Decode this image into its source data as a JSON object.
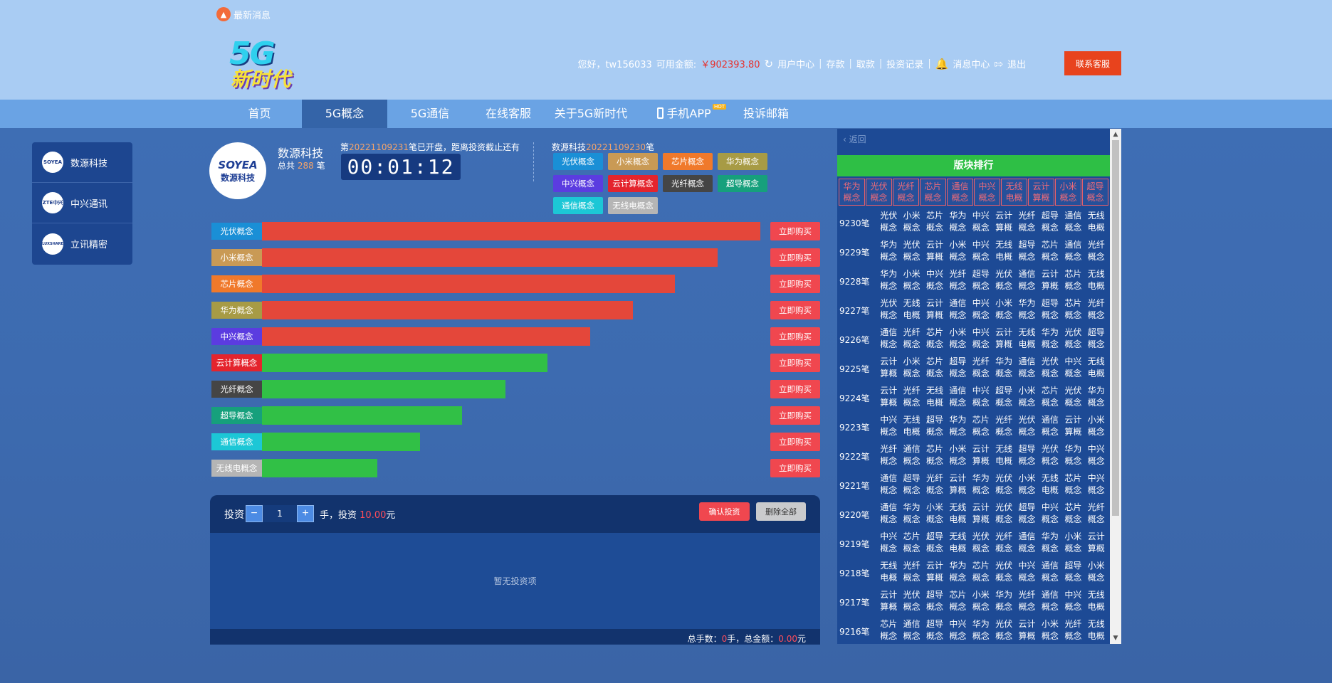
{
  "header": {
    "news_label": "最新消息",
    "logo_line1": "5G",
    "logo_line2": "新时代",
    "greeting": "您好，tw156033",
    "balance_label": "可用金额:",
    "balance_value": "￥902393.80",
    "links": [
      "用户中心",
      "存款",
      "取款",
      "投资记录",
      "消息中心",
      "退出"
    ],
    "contact_label": "联系客服"
  },
  "nav": {
    "items": [
      "首页",
      "5G概念",
      "5G通信",
      "在线客服",
      "关于5G新时代",
      "手机APP",
      "投诉邮箱"
    ],
    "hot_badge": "HOT",
    "active_index": 1
  },
  "sidebar": {
    "items": [
      {
        "label": "数源科技",
        "logo": "SOYEA"
      },
      {
        "label": "中兴通讯",
        "logo": "ZTE中兴"
      },
      {
        "label": "立讯精密",
        "logo": "LUXSHARE"
      }
    ]
  },
  "company": {
    "logo_line1": "SOYEA",
    "logo_line2": "数源科技",
    "name": "数源科技",
    "total_prefix": "总共",
    "total_count": "288",
    "total_suffix": "笔"
  },
  "period": {
    "prefix": "第",
    "number": "20221109231",
    "suffix": "笔已开盘，距离投资截止还有",
    "timer": "00:01:12"
  },
  "current": {
    "prefix": "数源科技",
    "number": "20221109230",
    "suffix": "笔"
  },
  "concepts": [
    {
      "name": "光伏概念",
      "color": "#1a8fd6"
    },
    {
      "name": "小米概念",
      "color": "#c99a55"
    },
    {
      "name": "芯片概念",
      "color": "#f0792b"
    },
    {
      "name": "华为概念",
      "color": "#a79b45"
    },
    {
      "name": "中兴概念",
      "color": "#5b3ce0"
    },
    {
      "name": "云计算概念",
      "color": "#e4242d"
    },
    {
      "name": "光纤概念",
      "color": "#454545"
    },
    {
      "name": "超导概念",
      "color": "#16a07c"
    },
    {
      "name": "通信概念",
      "color": "#1cc7d6"
    },
    {
      "name": "无线电概念",
      "color": "#b5b5b5"
    }
  ],
  "ranking_bars": {
    "buy_label": "立即购买",
    "items": [
      {
        "name": "光伏概念",
        "level": 1.0,
        "color": "#e4473a"
      },
      {
        "name": "小米概念",
        "level": 0.914,
        "color": "#e4473a"
      },
      {
        "name": "芯片概念",
        "level": 0.829,
        "color": "#e4473a"
      },
      {
        "name": "华为概念",
        "level": 0.744,
        "color": "#e4473a"
      },
      {
        "name": "中兴概念",
        "level": 0.658,
        "color": "#e4473a"
      },
      {
        "name": "云计算概念",
        "level": 0.573,
        "color": "#31c046"
      },
      {
        "name": "光纤概念",
        "level": 0.488,
        "color": "#31c046"
      },
      {
        "name": "超导概念",
        "level": 0.402,
        "color": "#31c046"
      },
      {
        "name": "通信概念",
        "level": 0.317,
        "color": "#31c046"
      },
      {
        "name": "无线电概念",
        "level": 0.232,
        "color": "#31c046"
      }
    ]
  },
  "invest": {
    "label": "投资",
    "minus": "−",
    "plus": "+",
    "quantity": "1",
    "unit_text": "手，投资",
    "amount": "10.00",
    "currency": "元",
    "confirm_label": "确认投资",
    "clear_label": "删除全部",
    "empty_text": "暂无投资项",
    "summary_hands_label": "总手数：",
    "summary_hands": "0",
    "summary_amount_label": "手，总金额：",
    "summary_amount": "0.00",
    "summary_currency": "元"
  },
  "right_panel": {
    "back_label": "返回",
    "title": "版块排行",
    "headers": [
      "华为\n概念",
      "光伏\n概念",
      "光纤\n概念",
      "芯片\n概念",
      "通信\n概念",
      "中兴\n概念",
      "无线\n电概",
      "云计\n算概",
      "小米\n概念",
      "超导\n概念"
    ],
    "rows": [
      {
        "period": "9230笔",
        "cells": [
          "光伏概念",
          "小米概念",
          "芯片概念",
          "华为概念",
          "中兴概念",
          "云计算概",
          "光纤概念",
          "超导概念",
          "通信概念",
          "无线电概"
        ]
      },
      {
        "period": "9229笔",
        "cells": [
          "华为概念",
          "光伏概念",
          "云计算概",
          "小米概念",
          "中兴概念",
          "无线电概",
          "超导概念",
          "芯片概念",
          "通信概念",
          "光纤概念"
        ]
      },
      {
        "period": "9228笔",
        "cells": [
          "华为概念",
          "小米概念",
          "中兴概念",
          "光纤概念",
          "超导概念",
          "光伏概念",
          "通信概念",
          "云计算概",
          "芯片概念",
          "无线电概"
        ]
      },
      {
        "period": "9227笔",
        "cells": [
          "光伏概念",
          "无线电概",
          "云计算概",
          "通信概念",
          "中兴概念",
          "小米概念",
          "华为概念",
          "超导概念",
          "芯片概念",
          "光纤概念"
        ]
      },
      {
        "period": "9226笔",
        "cells": [
          "通信概念",
          "光纤概念",
          "芯片概念",
          "小米概念",
          "中兴概念",
          "云计算概",
          "无线电概",
          "华为概念",
          "光伏概念",
          "超导概念"
        ]
      },
      {
        "period": "9225笔",
        "cells": [
          "云计算概",
          "小米概念",
          "芯片概念",
          "超导概念",
          "光纤概念",
          "华为概念",
          "通信概念",
          "光伏概念",
          "中兴概念",
          "无线电概"
        ]
      },
      {
        "period": "9224笔",
        "cells": [
          "云计算概",
          "光纤概念",
          "无线电概",
          "通信概念",
          "中兴概念",
          "超导概念",
          "小米概念",
          "芯片概念",
          "光伏概念",
          "华为概念"
        ]
      },
      {
        "period": "9223笔",
        "cells": [
          "中兴概念",
          "无线电概",
          "超导概念",
          "华为概念",
          "芯片概念",
          "光纤概念",
          "光伏概念",
          "通信概念",
          "云计算概",
          "小米概念"
        ]
      },
      {
        "period": "9222笔",
        "cells": [
          "光纤概念",
          "通信概念",
          "芯片概念",
          "小米概念",
          "云计算概",
          "无线电概",
          "超导概念",
          "光伏概念",
          "华为概念",
          "中兴概念"
        ]
      },
      {
        "period": "9221笔",
        "cells": [
          "通信概念",
          "超导概念",
          "光纤概念",
          "云计算概",
          "华为概念",
          "光伏概念",
          "小米概念",
          "无线电概",
          "芯片概念",
          "中兴概念"
        ]
      },
      {
        "period": "9220笔",
        "cells": [
          "通信概念",
          "华为概念",
          "小米概念",
          "无线电概",
          "云计算概",
          "光伏概念",
          "超导概念",
          "中兴概念",
          "芯片概念",
          "光纤概念"
        ]
      },
      {
        "period": "9219笔",
        "cells": [
          "中兴概念",
          "芯片概念",
          "超导概念",
          "无线电概",
          "光伏概念",
          "光纤概念",
          "通信概念",
          "华为概念",
          "小米概念",
          "云计算概"
        ]
      },
      {
        "period": "9218笔",
        "cells": [
          "无线电概",
          "光纤概念",
          "云计算概",
          "华为概念",
          "芯片概念",
          "光伏概念",
          "中兴概念",
          "通信概念",
          "超导概念",
          "小米概念"
        ]
      },
      {
        "period": "9217笔",
        "cells": [
          "云计算概",
          "光伏概念",
          "超导概念",
          "芯片概念",
          "小米概念",
          "华为概念",
          "光纤概念",
          "通信概念",
          "中兴概念",
          "无线电概"
        ]
      },
      {
        "period": "9216笔",
        "cells": [
          "芯片概念",
          "通信概念",
          "超导概念",
          "中兴概念",
          "华为概念",
          "光伏概念",
          "云计算概",
          "小米概念",
          "光纤概念",
          "无线电概"
        ]
      }
    ]
  }
}
